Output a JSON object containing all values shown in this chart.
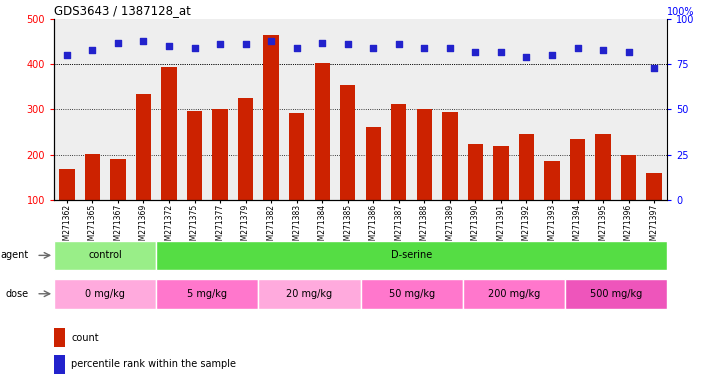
{
  "title": "GDS3643 / 1387128_at",
  "samples": [
    "GSM271362",
    "GSM271365",
    "GSM271367",
    "GSM271369",
    "GSM271372",
    "GSM271375",
    "GSM271377",
    "GSM271379",
    "GSM271382",
    "GSM271383",
    "GSM271384",
    "GSM271385",
    "GSM271386",
    "GSM271387",
    "GSM271388",
    "GSM271389",
    "GSM271390",
    "GSM271391",
    "GSM271392",
    "GSM271393",
    "GSM271394",
    "GSM271395",
    "GSM271396",
    "GSM271397"
  ],
  "counts": [
    168,
    202,
    190,
    335,
    395,
    296,
    302,
    325,
    465,
    293,
    403,
    355,
    262,
    312,
    302,
    295,
    224,
    220,
    246,
    186,
    235,
    246,
    200,
    160
  ],
  "percentiles": [
    80,
    83,
    87,
    88,
    85,
    84,
    86,
    86,
    88,
    84,
    87,
    86,
    84,
    86,
    84,
    84,
    82,
    82,
    79,
    80,
    84,
    83,
    82,
    73
  ],
  "bar_color": "#cc2200",
  "dot_color": "#2222cc",
  "ylim_left": [
    100,
    500
  ],
  "ylim_right": [
    0,
    100
  ],
  "yticks_left": [
    100,
    200,
    300,
    400,
    500
  ],
  "yticks_right": [
    0,
    25,
    50,
    75,
    100
  ],
  "grid_vals": [
    200,
    300,
    400
  ],
  "agent_groups": [
    {
      "label": "control",
      "start": 0,
      "end": 4,
      "color": "#99ee88"
    },
    {
      "label": "D-serine",
      "start": 4,
      "end": 24,
      "color": "#55dd44"
    }
  ],
  "dose_groups": [
    {
      "label": "0 mg/kg",
      "start": 0,
      "end": 4,
      "color": "#ffaadd"
    },
    {
      "label": "5 mg/kg",
      "start": 4,
      "end": 8,
      "color": "#ff77cc"
    },
    {
      "label": "20 mg/kg",
      "start": 8,
      "end": 12,
      "color": "#ffaadd"
    },
    {
      "label": "50 mg/kg",
      "start": 12,
      "end": 16,
      "color": "#ff77cc"
    },
    {
      "label": "200 mg/kg",
      "start": 16,
      "end": 20,
      "color": "#ff77cc"
    },
    {
      "label": "500 mg/kg",
      "start": 20,
      "end": 24,
      "color": "#ee55bb"
    }
  ],
  "legend_count_color": "#cc2200",
  "legend_dot_color": "#2222cc"
}
